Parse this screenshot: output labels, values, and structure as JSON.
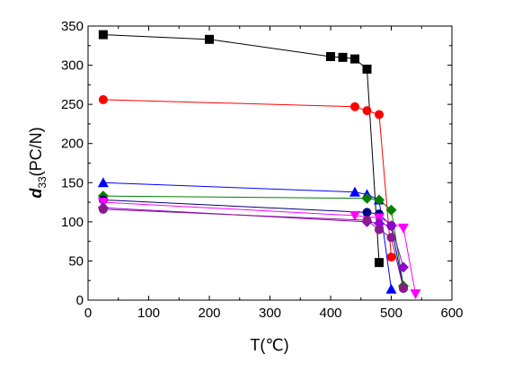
{
  "chart_data": {
    "type": "scatter",
    "xlabel": "T(℃)",
    "ylabel": {
      "main": "d",
      "sub": "33",
      "rest": "(PC/N)"
    },
    "xlim": [
      0,
      600
    ],
    "ylim": [
      0,
      350
    ],
    "xticks": [
      0,
      100,
      200,
      300,
      400,
      500,
      600
    ],
    "yticks": [
      0,
      50,
      100,
      150,
      200,
      250,
      300,
      350
    ],
    "grid": false,
    "legend": "none",
    "series": [
      {
        "color": "#000000",
        "marker": "square",
        "x": [
          25,
          200,
          400,
          420,
          440,
          460,
          480
        ],
        "y": [
          339,
          333,
          311,
          310,
          308,
          295,
          48
        ]
      },
      {
        "color": "#ff0000",
        "marker": "circle",
        "x": [
          25,
          440,
          460,
          480,
          500
        ],
        "y": [
          256,
          247,
          242,
          237,
          55
        ]
      },
      {
        "color": "#0000ff",
        "marker": "triangle-up",
        "x": [
          25,
          440,
          460,
          480,
          500
        ],
        "y": [
          150,
          138,
          135,
          128,
          14
        ]
      },
      {
        "color": "#008000",
        "marker": "diamond",
        "x": [
          25,
          460,
          480,
          500,
          520
        ],
        "y": [
          133,
          130,
          128,
          115,
          18
        ]
      },
      {
        "color": "#000080",
        "marker": "circle",
        "x": [
          25,
          460,
          480,
          500,
          520
        ],
        "y": [
          128,
          112,
          110,
          95,
          15
        ]
      },
      {
        "color": "#ff00ff",
        "marker": "triangle-down",
        "x": [
          25,
          440,
          480,
          520,
          540
        ],
        "y": [
          125,
          108,
          105,
          92,
          8
        ]
      },
      {
        "color": "#9400d3",
        "marker": "diamond",
        "x": [
          25,
          460,
          480,
          500,
          520
        ],
        "y": [
          118,
          100,
          98,
          95,
          42
        ]
      },
      {
        "color": "#8b1a8b",
        "marker": "circle",
        "x": [
          25,
          460,
          480,
          500,
          520
        ],
        "y": [
          116,
          102,
          90,
          80,
          15
        ]
      }
    ]
  }
}
